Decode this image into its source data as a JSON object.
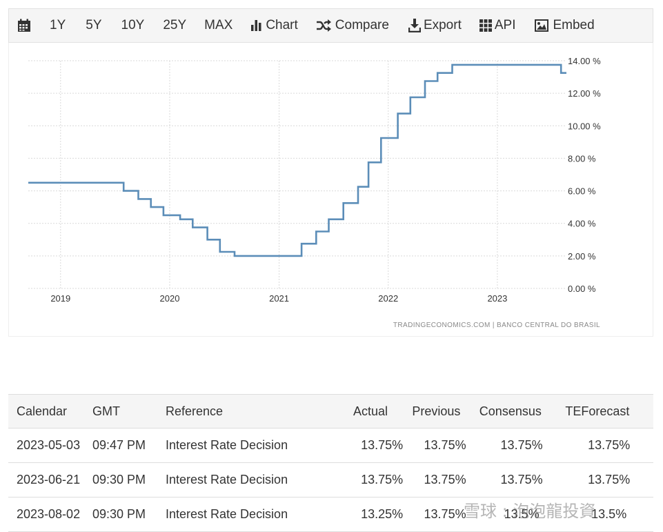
{
  "toolbar": {
    "calendar_icon": "calendar-icon",
    "ranges": [
      "1Y",
      "5Y",
      "10Y",
      "25Y",
      "MAX"
    ],
    "chart_label": "Chart",
    "compare_label": "Compare",
    "export_label": "Export",
    "api_label": "API",
    "embed_label": "Embed"
  },
  "chart_data": {
    "type": "line",
    "title": "",
    "xlabel": "",
    "ylabel": "",
    "x_ticks": [
      "2019",
      "2020",
      "2021",
      "2022",
      "2023"
    ],
    "y_ticks": [
      "14.00 %",
      "12.00 %",
      "10.00 %",
      "8.00 %",
      "6.00 %",
      "4.00 %",
      "2.00 %",
      "0.00 %"
    ],
    "ylim": [
      0,
      14
    ],
    "xlim": [
      "2018-09-15",
      "2023-08-20"
    ],
    "line_color": "#5b8db8",
    "series": [
      {
        "points": [
          [
            "2018-09-15",
            6.5
          ],
          [
            "2019-07-31",
            6.0
          ],
          [
            "2019-09-18",
            5.5
          ],
          [
            "2019-10-30",
            5.0
          ],
          [
            "2019-12-11",
            4.5
          ],
          [
            "2020-02-05",
            4.25
          ],
          [
            "2020-03-18",
            3.75
          ],
          [
            "2020-05-06",
            3.0
          ],
          [
            "2020-06-17",
            2.25
          ],
          [
            "2020-08-05",
            2.0
          ],
          [
            "2021-03-17",
            2.75
          ],
          [
            "2021-05-05",
            3.5
          ],
          [
            "2021-06-16",
            4.25
          ],
          [
            "2021-08-04",
            5.25
          ],
          [
            "2021-09-22",
            6.25
          ],
          [
            "2021-10-27",
            7.75
          ],
          [
            "2021-12-08",
            9.25
          ],
          [
            "2022-02-02",
            10.75
          ],
          [
            "2022-03-16",
            11.75
          ],
          [
            "2022-05-04",
            12.75
          ],
          [
            "2022-06-15",
            13.25
          ],
          [
            "2022-08-03",
            13.75
          ],
          [
            "2023-08-02",
            13.25
          ],
          [
            "2023-08-20",
            13.25
          ]
        ]
      }
    ],
    "source": "TRADINGECONOMICS.COM  |  BANCO CENTRAL DO BRASIL"
  },
  "table": {
    "headers": [
      "Calendar",
      "GMT",
      "Reference",
      "Actual",
      "Previous",
      "Consensus",
      "TEForecast"
    ],
    "rows": [
      [
        "2023-05-03",
        "09:47 PM",
        "Interest Rate Decision",
        "13.75%",
        "13.75%",
        "13.75%",
        "13.75%"
      ],
      [
        "2023-06-21",
        "09:30 PM",
        "Interest Rate Decision",
        "13.75%",
        "13.75%",
        "13.75%",
        "13.75%"
      ],
      [
        "2023-08-02",
        "09:30 PM",
        "Interest Rate Decision",
        "13.25%",
        "13.75%",
        "13.5%",
        "13.5%"
      ]
    ]
  },
  "watermark": {
    "text": "雪球 : 泡泡龍投資"
  }
}
